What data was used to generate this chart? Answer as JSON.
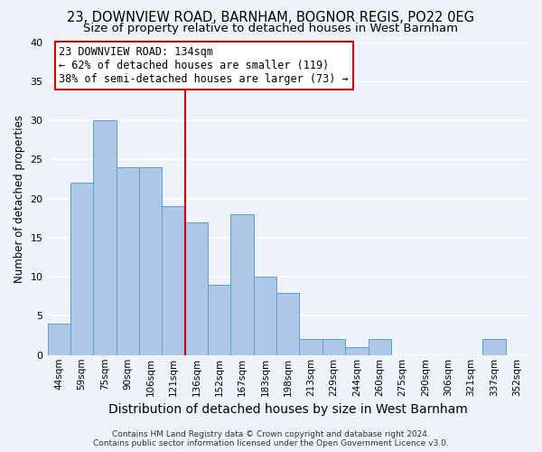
{
  "title": "23, DOWNVIEW ROAD, BARNHAM, BOGNOR REGIS, PO22 0EG",
  "subtitle": "Size of property relative to detached houses in West Barnham",
  "xlabel": "Distribution of detached houses by size in West Barnham",
  "ylabel": "Number of detached properties",
  "categories": [
    "44sqm",
    "59sqm",
    "75sqm",
    "90sqm",
    "106sqm",
    "121sqm",
    "136sqm",
    "152sqm",
    "167sqm",
    "183sqm",
    "198sqm",
    "213sqm",
    "229sqm",
    "244sqm",
    "260sqm",
    "275sqm",
    "290sqm",
    "306sqm",
    "321sqm",
    "337sqm",
    "352sqm"
  ],
  "values": [
    4,
    22,
    30,
    24,
    24,
    19,
    17,
    9,
    18,
    10,
    8,
    2,
    2,
    1,
    2,
    0,
    0,
    0,
    0,
    2,
    0
  ],
  "bar_color": "#aec6e8",
  "bar_edge_color": "#5a9fd4",
  "vline_x_index": 6,
  "vline_color": "#cc0000",
  "annotation_line1": "23 DOWNVIEW ROAD: 134sqm",
  "annotation_line2": "← 62% of detached houses are smaller (119)",
  "annotation_line3": "38% of semi-detached houses are larger (73) →",
  "annotation_box_color": "#ffffff",
  "annotation_box_edge_color": "#cc0000",
  "ylim": [
    0,
    40
  ],
  "yticks": [
    0,
    5,
    10,
    15,
    20,
    25,
    30,
    35,
    40
  ],
  "footnote": "Contains HM Land Registry data © Crown copyright and database right 2024.\nContains public sector information licensed under the Open Government Licence v3.0.",
  "background_color": "#eef2f9",
  "grid_color": "#ffffff",
  "title_fontsize": 10.5,
  "subtitle_fontsize": 9.5,
  "xlabel_fontsize": 10,
  "ylabel_fontsize": 8.5,
  "annotation_fontsize": 8.5,
  "tick_fontsize": 7.5,
  "footnote_fontsize": 6.5
}
